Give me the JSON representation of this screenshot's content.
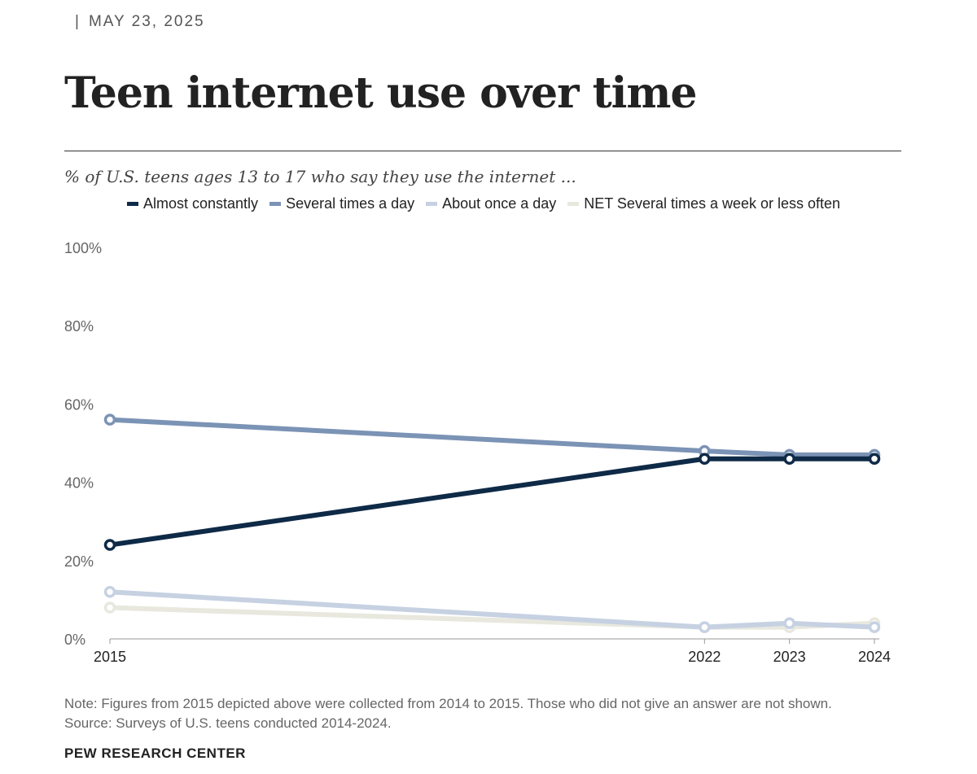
{
  "header": {
    "separator": "|",
    "date": "MAY 23, 2025",
    "title": "Teen internet use over time"
  },
  "chart_data": {
    "type": "line",
    "title": "Teen internet use over time",
    "subtitle": "% of U.S. teens ages 13 to 17 who say they use the internet ...",
    "x": [
      2015,
      2022,
      2023,
      2024
    ],
    "x_tick_labels": [
      "2015",
      "2022",
      "2023",
      "2024"
    ],
    "y_tick_labels": [
      "0%",
      "20%",
      "40%",
      "60%",
      "80%",
      "100%"
    ],
    "y_ticks": [
      0,
      20,
      40,
      60,
      80,
      100
    ],
    "ylim": [
      0,
      100
    ],
    "xlim": [
      2015,
      2024
    ],
    "grid": false,
    "legend_placement": "top",
    "series": [
      {
        "name": "Almost constantly",
        "color": "#0e2a47",
        "values": [
          24,
          46,
          46,
          46
        ]
      },
      {
        "name": "Several times a day",
        "color": "#7b93b5",
        "values": [
          56,
          48,
          47,
          47
        ]
      },
      {
        "name": "About once a day",
        "color": "#c6d1e2",
        "values": [
          12,
          3,
          4,
          3
        ]
      },
      {
        "name": "NET Several times a week or less often",
        "color": "#e8e8df",
        "values": [
          8,
          3,
          3,
          4
        ]
      }
    ]
  },
  "footer": {
    "note": "Note: Figures from 2015 depicted above were collected from 2014 to 2015. Those who did not give an answer are not shown.",
    "source": "Source: Surveys of U.S. teens conducted 2014-2024.",
    "brand": "PEW RESEARCH CENTER"
  }
}
